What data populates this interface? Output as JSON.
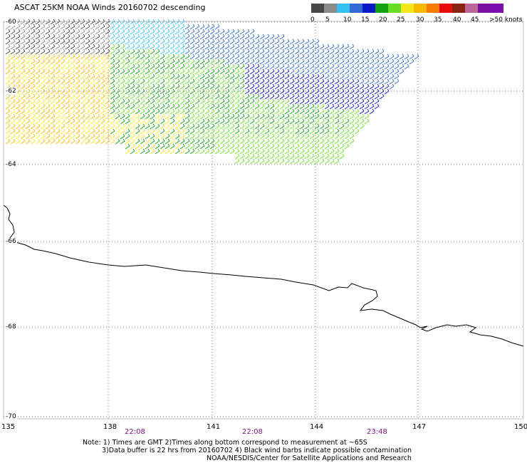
{
  "title": "ASCAT 25KM NOAA Winds 20160702 descending",
  "legend": {
    "swatches": [
      "#474747",
      "#8a8a8a",
      "#34c0f0",
      "#2f6bd0",
      "#0b18c8",
      "#11a011",
      "#66dd22",
      "#f2e818",
      "#f7b800",
      "#f77b00",
      "#e80c0c",
      "#882211",
      "#bb6699",
      "#7a0fa0",
      "#7a0fb0"
    ],
    "labels": [
      "0",
      "5",
      "10",
      "15",
      "20",
      "25",
      "30",
      "35",
      "40",
      "45",
      ">50 knots"
    ]
  },
  "lat_labels": [
    "-60",
    "-62",
    "-64",
    "-66",
    "-68",
    "-70"
  ],
  "lon_labels": [
    "135",
    "138",
    "141",
    "144",
    "147",
    "150"
  ],
  "times": [
    "22:08",
    "22:08",
    "23:48"
  ],
  "notes": {
    "line1": "Note: 1) Times are GMT 2)Times along bottom correspond to measurement at ~65S",
    "line2": "3)Data buffer is 22 hrs from 20160702 4) Black wind barbs indicate possible contamination",
    "line3": "NOAA/NESDIS/Center for Satellite Applications and Research"
  }
}
